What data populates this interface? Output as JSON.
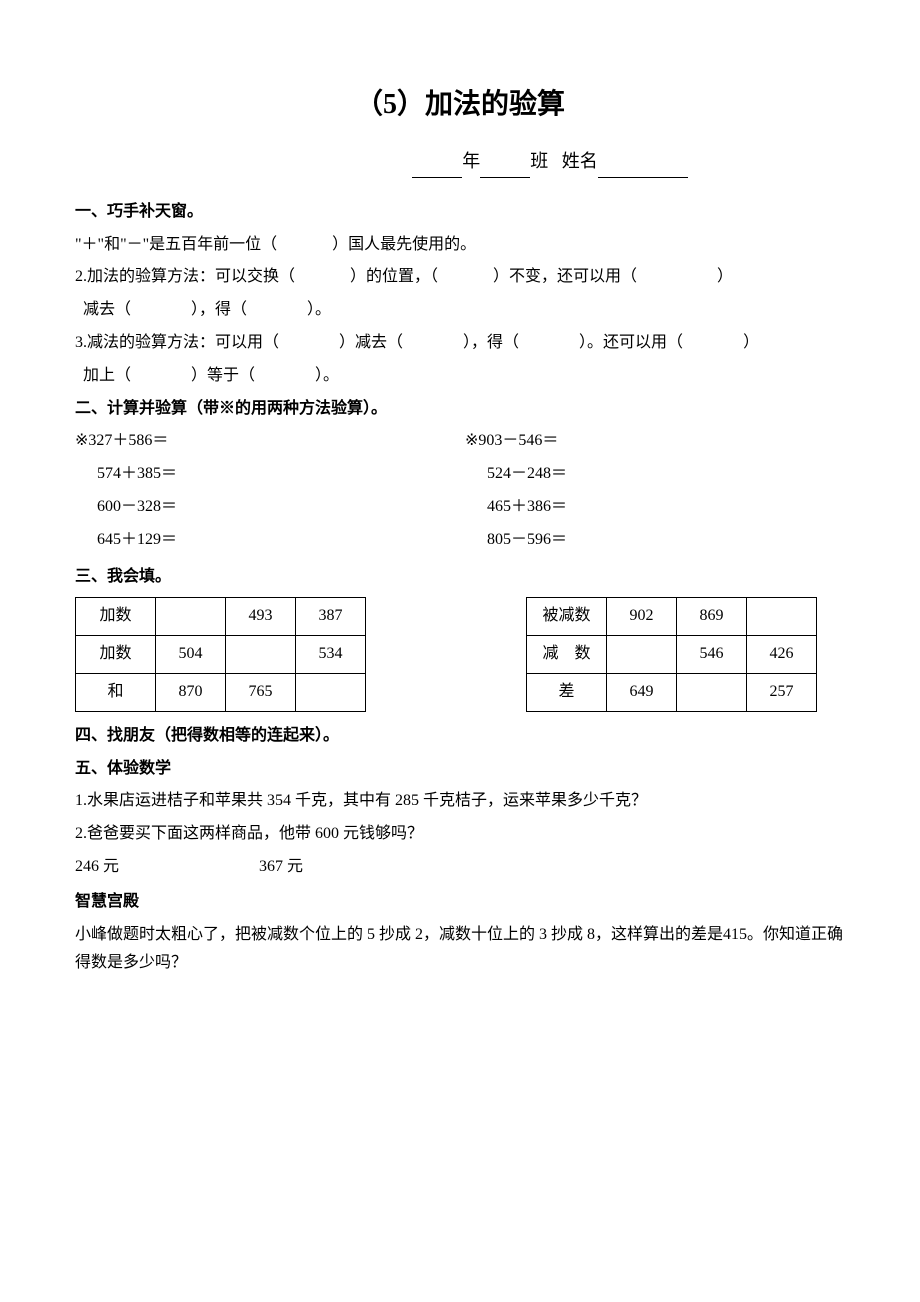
{
  "title": {
    "number": "（5）",
    "text": "加法的验算"
  },
  "header": {
    "year_label": "年",
    "class_label": "班",
    "name_label": "姓名"
  },
  "section1": {
    "title": "一、巧手补天窗。",
    "q1_part1": "\"＋\"和\"－\"是五百年前一位（",
    "q1_part2": "）国人最先使用的。",
    "q2_part1": "2.加法的验算方法：可以交换（",
    "q2_part2": "）的位置，（",
    "q2_part3": "）不变，还可以用（",
    "q2_part4": "）",
    "q2_line2_part1": "减去（",
    "q2_line2_part2": "），得（",
    "q2_line2_part3": "）。",
    "q3_part1": "3.减法的验算方法：可以用（",
    "q3_part2": "）减去（",
    "q3_part3": "），得（",
    "q3_part4": "）。还可以用（",
    "q3_part5": "）",
    "q3_line2_part1": "加上（",
    "q3_line2_part2": "）等于（",
    "q3_line2_part3": "）。"
  },
  "section2": {
    "title": "二、计算并验算（带※的用两种方法验算）。",
    "left": [
      "※327＋586＝",
      "574＋385＝",
      "600－328＝",
      "645＋129＝"
    ],
    "right": [
      "※903－546＝",
      "524－248＝",
      "465＋386＝",
      "805－596＝"
    ]
  },
  "section3": {
    "title": "三、我会填。",
    "table1": {
      "rows": [
        [
          "加数",
          "",
          "493",
          "387"
        ],
        [
          "加数",
          "504",
          "",
          "534"
        ],
        [
          "和",
          "870",
          "765",
          ""
        ]
      ]
    },
    "table2": {
      "rows": [
        [
          "被减数",
          "902",
          "869",
          ""
        ],
        [
          "减数",
          "",
          "546",
          "426"
        ],
        [
          "差",
          "649",
          "",
          "257"
        ]
      ],
      "row2_label_styled": "减　数"
    }
  },
  "section4": {
    "title": "四、找朋友（把得数相等的连起来）。"
  },
  "section5": {
    "title": "五、体验数学",
    "q1": "1.水果店运进桔子和苹果共 354 千克，其中有 285 千克桔子，运来苹果多少千克？",
    "q2": "2.爸爸要买下面这两样商品，他带 600 元钱够吗？",
    "price1": "246 元",
    "price2": "367 元"
  },
  "section6": {
    "title": "智慧宫殿",
    "text": "小峰做题时太粗心了，把被减数个位上的 5 抄成 2，减数十位上的 3 抄成 8，这样算出的差是415。你知道正确得数是多少吗？"
  }
}
